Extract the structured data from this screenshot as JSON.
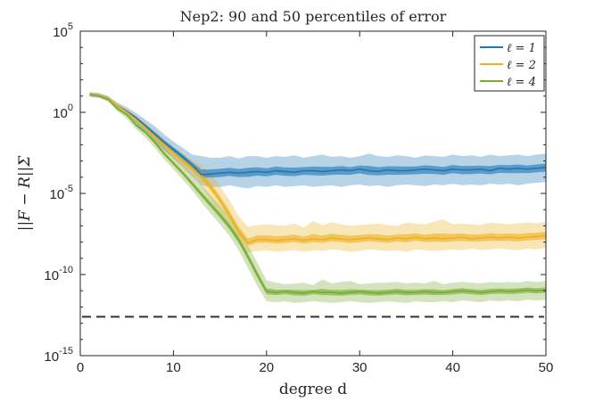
{
  "chart_data": {
    "type": "area",
    "title": "Nep2: 90 and 50 percentiles of error",
    "xlabel": "degree d",
    "ylabel": "||F − R||Σ",
    "xlim": [
      0,
      50
    ],
    "ylim_log10": [
      -15,
      5
    ],
    "y_scale": "log",
    "x_ticks": [
      0,
      10,
      20,
      30,
      40,
      50
    ],
    "x_tick_labels": [
      "0",
      "10",
      "20",
      "30",
      "40",
      "50"
    ],
    "y_ticks_log10": [
      -15,
      -10,
      -5,
      0,
      5
    ],
    "y_tick_labels": [
      {
        "base": "10",
        "exp": "-15"
      },
      {
        "base": "10",
        "exp": "-10"
      },
      {
        "base": "10",
        "exp": "-5"
      },
      {
        "base": "10",
        "exp": "0"
      },
      {
        "base": "10",
        "exp": "5"
      }
    ],
    "legend_position": "top-right",
    "reference_line": {
      "log10_y": -12.6,
      "style": "dashed",
      "color": "#333333"
    },
    "x": [
      1,
      2,
      3,
      4,
      5,
      6,
      7,
      8,
      9,
      10,
      11,
      12,
      13,
      14,
      15,
      16,
      17,
      18,
      19,
      20,
      21,
      22,
      23,
      24,
      25,
      26,
      27,
      28,
      29,
      30,
      31,
      32,
      33,
      34,
      35,
      36,
      37,
      38,
      39,
      40,
      41,
      42,
      43,
      44,
      45,
      46,
      47,
      48,
      49,
      50
    ],
    "series": [
      {
        "name": "ℓ = 1",
        "color": "#1f77b4",
        "median_log10": [
          1.1,
          1.05,
          0.85,
          0.4,
          0.05,
          -0.35,
          -0.85,
          -1.35,
          -1.85,
          -2.3,
          -2.75,
          -3.25,
          -3.85,
          -3.8,
          -3.75,
          -3.7,
          -3.75,
          -3.7,
          -3.65,
          -3.7,
          -3.6,
          -3.65,
          -3.7,
          -3.6,
          -3.6,
          -3.65,
          -3.6,
          -3.55,
          -3.6,
          -3.5,
          -3.6,
          -3.65,
          -3.55,
          -3.6,
          -3.6,
          -3.55,
          -3.5,
          -3.55,
          -3.6,
          -3.5,
          -3.55,
          -3.55,
          -3.5,
          -3.6,
          -3.45,
          -3.5,
          -3.45,
          -3.5,
          -3.45,
          -3.4
        ],
        "p90_log10": [
          1.25,
          1.2,
          1.0,
          0.6,
          0.3,
          -0.05,
          -0.45,
          -0.85,
          -1.35,
          -1.8,
          -2.2,
          -2.6,
          -2.7,
          -2.8,
          -2.8,
          -2.7,
          -2.85,
          -2.7,
          -2.7,
          -2.8,
          -2.7,
          -2.75,
          -2.65,
          -2.8,
          -2.7,
          -2.6,
          -2.75,
          -2.7,
          -2.8,
          -2.7,
          -2.55,
          -2.7,
          -2.75,
          -2.65,
          -2.7,
          -2.8,
          -2.65,
          -2.7,
          -2.75,
          -2.6,
          -2.7,
          -2.65,
          -2.75,
          -2.6,
          -2.7,
          -2.65,
          -2.6,
          -2.7,
          -2.6,
          -2.55
        ],
        "p10_log10": [
          0.95,
          0.9,
          0.7,
          0.2,
          -0.25,
          -0.7,
          -1.25,
          -1.8,
          -2.35,
          -2.8,
          -3.3,
          -3.9,
          -4.5,
          -4.6,
          -4.6,
          -4.5,
          -4.6,
          -4.7,
          -4.55,
          -4.6,
          -4.5,
          -4.6,
          -4.55,
          -4.5,
          -4.6,
          -4.55,
          -4.5,
          -4.6,
          -4.5,
          -4.45,
          -4.55,
          -4.5,
          -4.6,
          -4.5,
          -4.45,
          -4.5,
          -4.55,
          -4.45,
          -4.5,
          -4.4,
          -4.5,
          -4.45,
          -4.5,
          -4.4,
          -4.45,
          -4.4,
          -4.5,
          -4.4,
          -4.35,
          -4.3
        ]
      },
      {
        "name": "ℓ = 2",
        "color": "#edb120",
        "median_log10": [
          1.1,
          1.05,
          0.85,
          0.4,
          0.0,
          -0.45,
          -0.95,
          -1.5,
          -2.0,
          -2.5,
          -3.0,
          -3.45,
          -3.95,
          -4.6,
          -5.4,
          -6.3,
          -7.3,
          -8.05,
          -7.85,
          -7.85,
          -7.9,
          -7.85,
          -7.8,
          -7.9,
          -7.8,
          -7.85,
          -7.75,
          -7.8,
          -7.85,
          -7.8,
          -7.75,
          -7.8,
          -7.85,
          -7.75,
          -7.8,
          -7.7,
          -7.8,
          -7.75,
          -7.8,
          -7.75,
          -7.7,
          -7.8,
          -7.75,
          -7.7,
          -7.75,
          -7.7,
          -7.75,
          -7.7,
          -7.65,
          -7.6
        ],
        "p90_log10": [
          1.2,
          1.15,
          1.0,
          0.55,
          0.2,
          -0.2,
          -0.65,
          -1.15,
          -1.65,
          -2.15,
          -2.55,
          -2.95,
          -3.25,
          -3.75,
          -4.55,
          -5.4,
          -6.4,
          -7.05,
          -6.95,
          -6.9,
          -6.95,
          -7.0,
          -6.85,
          -7.1,
          -6.7,
          -6.95,
          -6.8,
          -6.9,
          -7.0,
          -6.95,
          -6.9,
          -6.85,
          -6.95,
          -7.0,
          -6.8,
          -6.85,
          -6.9,
          -6.75,
          -6.6,
          -6.9,
          -6.85,
          -6.9,
          -6.95,
          -6.8,
          -6.85,
          -6.9,
          -6.85,
          -6.8,
          -6.85,
          -6.75
        ],
        "p10_log10": [
          1.0,
          0.95,
          0.7,
          0.25,
          -0.2,
          -0.65,
          -1.2,
          -1.8,
          -2.35,
          -2.9,
          -3.45,
          -3.95,
          -4.55,
          -5.4,
          -6.2,
          -7.1,
          -8.1,
          -8.65,
          -8.55,
          -8.5,
          -8.6,
          -8.55,
          -8.5,
          -8.6,
          -8.5,
          -8.55,
          -8.45,
          -8.5,
          -8.6,
          -8.55,
          -8.45,
          -8.5,
          -8.55,
          -8.5,
          -8.6,
          -8.45,
          -8.5,
          -8.55,
          -8.5,
          -8.45,
          -8.5,
          -8.4,
          -8.5,
          -8.45,
          -8.4,
          -8.45,
          -8.5,
          -8.4,
          -8.45,
          -8.35
        ]
      },
      {
        "name": "ℓ = 4",
        "color": "#77ac30",
        "median_log10": [
          1.1,
          1.0,
          0.8,
          0.2,
          -0.15,
          -0.8,
          -1.25,
          -1.85,
          -2.55,
          -3.15,
          -3.75,
          -4.4,
          -5.05,
          -5.7,
          -6.35,
          -7.05,
          -7.85,
          -8.9,
          -10.0,
          -11.05,
          -11.1,
          -11.05,
          -11.1,
          -11.15,
          -11.05,
          -11.1,
          -11.1,
          -11.15,
          -11.1,
          -11.05,
          -11.1,
          -11.15,
          -11.1,
          -11.05,
          -11.1,
          -11.1,
          -11.05,
          -11.1,
          -11.1,
          -11.05,
          -11.0,
          -11.05,
          -11.1,
          -11.05,
          -11.0,
          -11.05,
          -11.0,
          -10.95,
          -11.0,
          -10.95
        ],
        "p90_log10": [
          1.2,
          1.1,
          0.95,
          0.4,
          0.1,
          -0.45,
          -0.9,
          -1.45,
          -2.1,
          -2.7,
          -3.25,
          -3.85,
          -4.5,
          -5.1,
          -5.75,
          -6.4,
          -7.2,
          -8.2,
          -9.25,
          -10.35,
          -10.5,
          -10.6,
          -10.55,
          -10.5,
          -10.65,
          -10.3,
          -10.55,
          -10.45,
          -10.4,
          -10.6,
          -10.55,
          -10.5,
          -10.5,
          -10.45,
          -10.55,
          -10.5,
          -10.55,
          -10.4,
          -10.6,
          -10.5,
          -10.45,
          -10.5,
          -10.55,
          -10.45,
          -10.5,
          -10.45,
          -10.5,
          -10.4,
          -10.45,
          -10.4
        ],
        "p10_log10": [
          1.0,
          0.9,
          0.65,
          0.05,
          -0.4,
          -1.05,
          -1.55,
          -2.2,
          -2.9,
          -3.5,
          -4.15,
          -4.8,
          -5.55,
          -6.25,
          -6.9,
          -7.6,
          -8.5,
          -9.6,
          -10.7,
          -11.65,
          -11.7,
          -11.65,
          -11.75,
          -11.7,
          -11.65,
          -11.7,
          -11.75,
          -11.7,
          -11.65,
          -11.7,
          -11.75,
          -11.7,
          -11.65,
          -11.7,
          -11.75,
          -11.65,
          -11.7,
          -11.7,
          -11.65,
          -11.7,
          -11.6,
          -11.65,
          -11.7,
          -11.6,
          -11.65,
          -11.6,
          -11.65,
          -11.55,
          -11.6,
          -11.55
        ]
      }
    ]
  }
}
